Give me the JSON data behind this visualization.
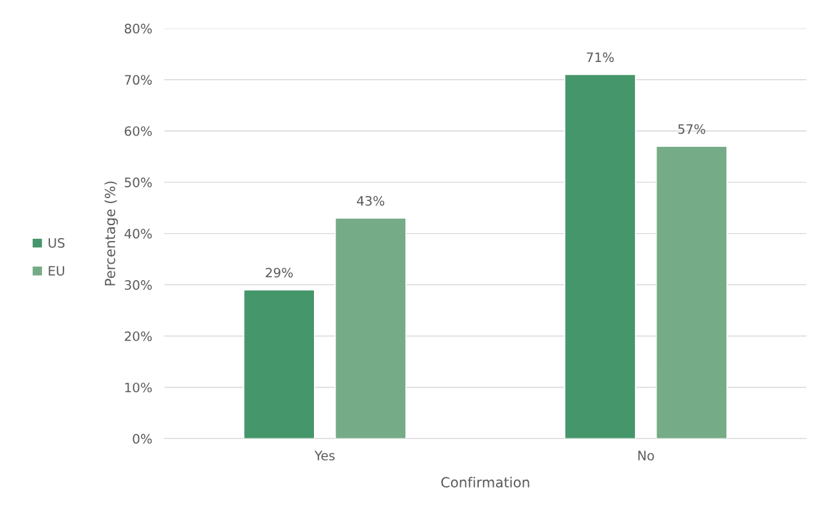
{
  "chart_data": {
    "type": "bar",
    "xlabel": "Confirmation",
    "ylabel": "Percentage (%)",
    "categories": [
      "Yes",
      "No"
    ],
    "series": [
      {
        "name": "US",
        "color": "#45966a",
        "values": [
          29,
          71
        ],
        "value_labels": [
          "29%",
          "71%"
        ]
      },
      {
        "name": "EU",
        "color": "#75ab86",
        "values": [
          43,
          57
        ],
        "value_labels": [
          "43%",
          "57%"
        ]
      }
    ],
    "ylim": [
      0,
      80
    ],
    "yticks": [
      {
        "value": 0,
        "label": "0%"
      },
      {
        "value": 10,
        "label": "10%"
      },
      {
        "value": 20,
        "label": "20%"
      },
      {
        "value": 30,
        "label": "30%"
      },
      {
        "value": 40,
        "label": "40%"
      },
      {
        "value": 50,
        "label": "50%"
      },
      {
        "value": 60,
        "label": "60%"
      },
      {
        "value": 70,
        "label": "70%"
      },
      {
        "value": 80,
        "label": "80%"
      }
    ],
    "grid": "y",
    "legend": "left"
  }
}
